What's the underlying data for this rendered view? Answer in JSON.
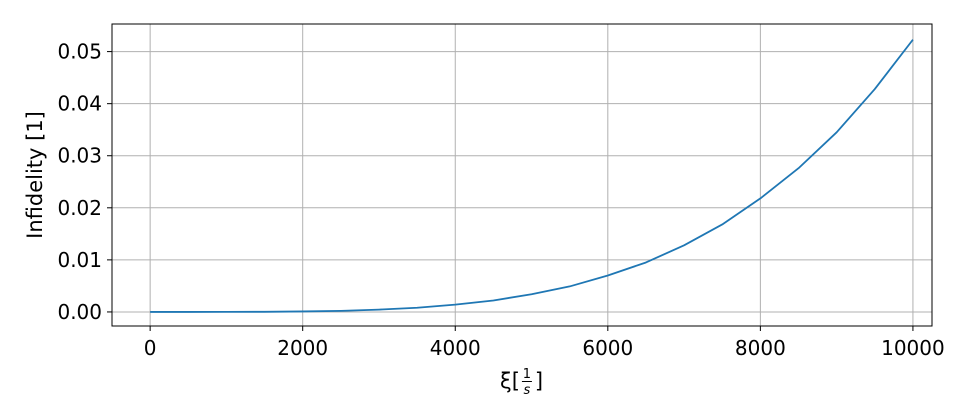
{
  "chart_data": {
    "type": "line",
    "title": "",
    "xlabel": "ξ[1/s]",
    "xlabel_parts": {
      "symbol": "ξ",
      "open": "[",
      "numerator": "1",
      "denominator": "s",
      "close": "]"
    },
    "ylabel": "Infidelity [1]",
    "xlim": [
      -500,
      10250
    ],
    "ylim": [
      -0.0027,
      0.0553
    ],
    "xticks": [
      0,
      2000,
      4000,
      6000,
      8000,
      10000
    ],
    "xtick_labels": [
      "0",
      "2000",
      "4000",
      "6000",
      "8000",
      "10000"
    ],
    "yticks": [
      0.0,
      0.01,
      0.02,
      0.03,
      0.04,
      0.05
    ],
    "ytick_labels": [
      "0.00",
      "0.01",
      "0.02",
      "0.03",
      "0.04",
      "0.05"
    ],
    "grid": true,
    "series": [
      {
        "color": "#1f77b4",
        "x": [
          0,
          500,
          1000,
          1500,
          2000,
          2500,
          3000,
          3500,
          4000,
          4500,
          5000,
          5500,
          6000,
          6500,
          7000,
          7500,
          8000,
          8500,
          9000,
          9500,
          10000
        ],
        "y": [
          0.0,
          0.0,
          1e-05,
          3e-05,
          0.0001,
          0.0002,
          0.00045,
          0.0008,
          0.0014,
          0.0022,
          0.0034,
          0.0049,
          0.007,
          0.0095,
          0.0128,
          0.0168,
          0.0218,
          0.0276,
          0.0345,
          0.0428,
          0.0523
        ]
      }
    ]
  }
}
